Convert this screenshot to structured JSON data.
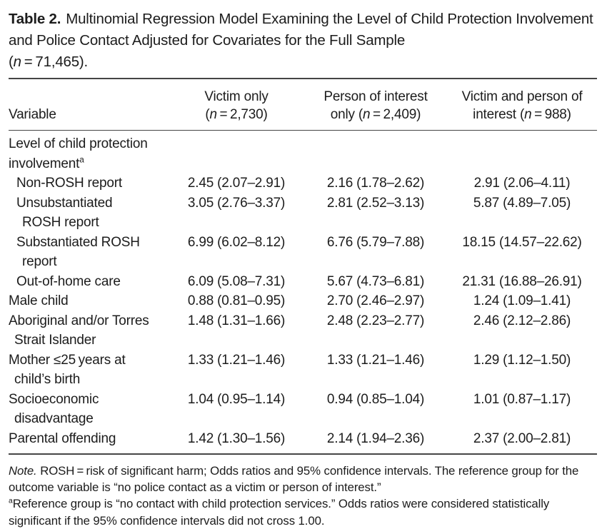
{
  "page": {
    "background": "#ffffff",
    "text_color": "#1c1c1c",
    "rule_color": "#454545"
  },
  "title": {
    "label": "Table 2.",
    "body": "Multinomial Regression Model Examining the Level of Child Protection Involvement and Police Contact Adjusted for Covariates for the Full Sample",
    "n_open": "(",
    "n_italic": "n",
    "n_rest": " = 71,465)."
  },
  "table": {
    "header": {
      "variable": "Variable",
      "cols": [
        {
          "line1": "Victim only",
          "line2_pre": "(",
          "n": "n",
          "line2_post": " = 2,730)"
        },
        {
          "line1": "Person of interest",
          "line2_pre": "only (",
          "n": "n",
          "line2_post": " = 2,409)"
        },
        {
          "line1": "Victim and person of",
          "line2_pre": "interest (",
          "n": "n",
          "line2_post": " = 988)"
        }
      ]
    },
    "rows": [
      {
        "label_line1": "Level of child protection involvement",
        "sup": "a"
      },
      {
        "label_line1": "Non-ROSH report",
        "values": [
          "2.45 (2.07–2.91)",
          "2.16 (1.78–2.62)",
          "2.91 (2.06–4.11)"
        ]
      },
      {
        "label_line1": "Unsubstantiated",
        "label_line2": "ROSH report",
        "values": [
          "3.05 (2.76–3.37)",
          "2.81 (2.52–3.13)",
          "5.87 (4.89–7.05)"
        ]
      },
      {
        "label_line1": "Substantiated ROSH",
        "label_line2": "report",
        "values": [
          "6.99 (6.02–8.12)",
          "6.76 (5.79–7.88)",
          "18.15 (14.57–22.62)"
        ]
      },
      {
        "label_line1": "Out-of-home care",
        "values": [
          "6.09 (5.08–7.31)",
          "5.67 (4.73–6.81)",
          "21.31 (16.88–26.91)"
        ]
      },
      {
        "label_line1": "Male child",
        "values": [
          "0.88 (0.81–0.95)",
          "2.70 (2.46–2.97)",
          "1.24 (1.09–1.41)"
        ]
      },
      {
        "label_line1": "Aboriginal and/or Torres",
        "label_line2": "Strait Islander",
        "values": [
          "1.48 (1.31–1.66)",
          "2.48 (2.23–2.77)",
          "2.46 (2.12–2.86)"
        ]
      },
      {
        "label_line1": "Mother ≤25 years at",
        "label_line2": "child’s birth",
        "values": [
          "1.33 (1.21–1.46)",
          "1.33 (1.21–1.46)",
          "1.29 (1.12–1.50)"
        ]
      },
      {
        "label_line1": "Socioeconomic",
        "label_line2": "disadvantage",
        "values": [
          "1.04 (0.95–1.14)",
          "0.94 (0.85–1.04)",
          "1.01 (0.87–1.17)"
        ]
      },
      {
        "label_line1": "Parental offending",
        "values": [
          "1.42 (1.30–1.56)",
          "2.14 (1.94–2.36)",
          "2.37 (2.00–2.81)"
        ]
      }
    ]
  },
  "notes": {
    "note_label": "Note.",
    "note_text": "ROSH = risk of significant harm; Odds ratios and 95% confidence intervals. The reference group for the outcome variable is “no police contact as a victim or person of interest.”",
    "footnote_marker": "a",
    "footnote_text": "Reference group is “no contact with child protection services.” Odds ratios were considered statistically significant if the 95% confidence intervals did not cross 1.00."
  }
}
